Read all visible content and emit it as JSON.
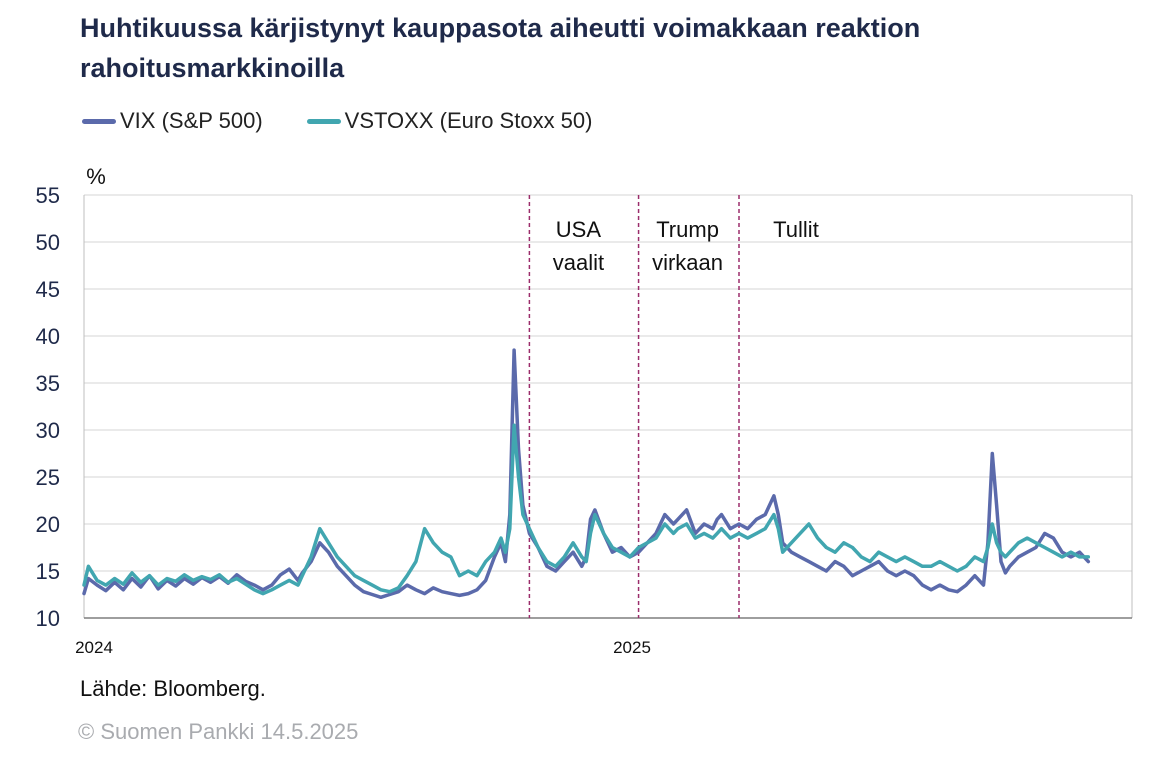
{
  "chart_data": {
    "type": "line",
    "title": "Huhtikuussa kärjistynyt kauppasota aiheutti voimakkaan reaktion rahoitusmarkkinoilla",
    "ylabel": "%",
    "ylim": [
      10,
      55
    ],
    "yticks": [
      10,
      15,
      20,
      25,
      30,
      35,
      40,
      45,
      50,
      55
    ],
    "xlim_month": [
      0,
      24
    ],
    "xticks": [
      {
        "label": "2024",
        "month": 0
      },
      {
        "label": "2025",
        "month": 12
      }
    ],
    "grid": true,
    "legend_position": "top-left",
    "annotations": [
      {
        "month": 10.2,
        "lines": [
          "USA",
          "vaalit"
        ]
      },
      {
        "month": 12.7,
        "lines": [
          "Trump",
          "virkaan"
        ]
      },
      {
        "month": 15.0,
        "lines": [
          "Tullit"
        ]
      }
    ],
    "series": [
      {
        "name": "VIX (S&P 500)",
        "color": "#5b6aab",
        "points": [
          [
            0,
            12.6
          ],
          [
            0.1,
            14.2
          ],
          [
            0.3,
            13.5
          ],
          [
            0.5,
            12.9
          ],
          [
            0.7,
            13.8
          ],
          [
            0.9,
            13.0
          ],
          [
            1.1,
            14.2
          ],
          [
            1.3,
            13.3
          ],
          [
            1.5,
            14.5
          ],
          [
            1.7,
            13.1
          ],
          [
            1.9,
            14.0
          ],
          [
            2.1,
            13.4
          ],
          [
            2.3,
            14.2
          ],
          [
            2.5,
            13.6
          ],
          [
            2.7,
            14.3
          ],
          [
            2.9,
            13.8
          ],
          [
            3.1,
            14.4
          ],
          [
            3.3,
            13.7
          ],
          [
            3.5,
            14.6
          ],
          [
            3.7,
            13.9
          ],
          [
            3.9,
            13.5
          ],
          [
            4.1,
            13.0
          ],
          [
            4.3,
            13.5
          ],
          [
            4.5,
            14.6
          ],
          [
            4.7,
            15.2
          ],
          [
            4.9,
            14.0
          ],
          [
            5.0,
            14.8
          ],
          [
            5.2,
            16.0
          ],
          [
            5.4,
            18.0
          ],
          [
            5.6,
            17.0
          ],
          [
            5.8,
            15.5
          ],
          [
            6.0,
            14.5
          ],
          [
            6.2,
            13.5
          ],
          [
            6.4,
            12.8
          ],
          [
            6.6,
            12.5
          ],
          [
            6.8,
            12.2
          ],
          [
            7.0,
            12.5
          ],
          [
            7.2,
            12.8
          ],
          [
            7.4,
            13.5
          ],
          [
            7.6,
            13.0
          ],
          [
            7.8,
            12.6
          ],
          [
            8.0,
            13.2
          ],
          [
            8.2,
            12.8
          ],
          [
            8.4,
            12.6
          ],
          [
            8.6,
            12.4
          ],
          [
            8.8,
            12.6
          ],
          [
            9.0,
            13.0
          ],
          [
            9.2,
            14.0
          ],
          [
            9.4,
            16.5
          ],
          [
            9.55,
            18.0
          ],
          [
            9.65,
            16.0
          ],
          [
            9.75,
            21.0
          ],
          [
            9.85,
            38.5
          ],
          [
            9.95,
            28.0
          ],
          [
            10.05,
            22.0
          ],
          [
            10.2,
            19.0
          ],
          [
            10.4,
            17.5
          ],
          [
            10.6,
            15.5
          ],
          [
            10.8,
            15.0
          ],
          [
            11.0,
            16.0
          ],
          [
            11.2,
            17.0
          ],
          [
            11.4,
            15.5
          ],
          [
            11.5,
            16.5
          ],
          [
            11.6,
            20.5
          ],
          [
            11.7,
            21.5
          ],
          [
            11.9,
            19.0
          ],
          [
            12.1,
            17.0
          ],
          [
            12.3,
            17.5
          ],
          [
            12.5,
            16.5
          ],
          [
            12.7,
            17.0
          ],
          [
            12.9,
            18.0
          ],
          [
            13.1,
            19.0
          ],
          [
            13.3,
            21.0
          ],
          [
            13.5,
            20.0
          ],
          [
            13.6,
            20.5
          ],
          [
            13.8,
            21.5
          ],
          [
            14.0,
            19.0
          ],
          [
            14.2,
            20.0
          ],
          [
            14.4,
            19.5
          ],
          [
            14.5,
            20.5
          ],
          [
            14.6,
            21.0
          ],
          [
            14.8,
            19.5
          ],
          [
            15.0,
            20.0
          ],
          [
            15.2,
            19.5
          ],
          [
            15.4,
            20.5
          ],
          [
            15.6,
            21.0
          ],
          [
            15.8,
            23.0
          ],
          [
            15.9,
            21.0
          ],
          [
            16.0,
            18.0
          ],
          [
            16.2,
            17.0
          ],
          [
            16.4,
            16.5
          ],
          [
            16.6,
            16.0
          ],
          [
            16.8,
            15.5
          ],
          [
            17.0,
            15.0
          ],
          [
            17.2,
            16.0
          ],
          [
            17.4,
            15.5
          ],
          [
            17.6,
            14.5
          ],
          [
            17.8,
            15.0
          ],
          [
            18.0,
            15.5
          ],
          [
            18.2,
            16.0
          ],
          [
            18.4,
            15.0
          ],
          [
            18.6,
            14.5
          ],
          [
            18.8,
            15.0
          ],
          [
            19.0,
            14.5
          ],
          [
            19.2,
            13.5
          ],
          [
            19.4,
            13.0
          ],
          [
            19.6,
            13.5
          ],
          [
            19.8,
            13.0
          ],
          [
            20.0,
            12.8
          ],
          [
            20.2,
            13.5
          ],
          [
            20.4,
            14.5
          ],
          [
            20.6,
            13.5
          ],
          [
            20.7,
            18.0
          ],
          [
            20.8,
            27.5
          ],
          [
            20.9,
            22.0
          ],
          [
            21.0,
            16.0
          ],
          [
            21.1,
            14.8
          ],
          [
            21.2,
            15.5
          ],
          [
            21.4,
            16.5
          ],
          [
            21.6,
            17.0
          ],
          [
            21.8,
            17.5
          ],
          [
            22.0,
            19.0
          ],
          [
            22.2,
            18.5
          ],
          [
            22.4,
            17.0
          ],
          [
            22.6,
            16.5
          ],
          [
            22.8,
            17.0
          ],
          [
            23.0,
            16.0
          ]
        ]
      },
      {
        "name": "VSTOXX (Euro Stoxx 50)",
        "color": "#41a6b0",
        "points": [
          [
            0,
            13.5
          ],
          [
            0.1,
            15.5
          ],
          [
            0.3,
            14.0
          ],
          [
            0.5,
            13.5
          ],
          [
            0.7,
            14.2
          ],
          [
            0.9,
            13.6
          ],
          [
            1.1,
            14.8
          ],
          [
            1.3,
            13.8
          ],
          [
            1.5,
            14.5
          ],
          [
            1.7,
            13.5
          ],
          [
            1.9,
            14.2
          ],
          [
            2.1,
            13.9
          ],
          [
            2.3,
            14.6
          ],
          [
            2.5,
            14.0
          ],
          [
            2.7,
            14.4
          ],
          [
            2.9,
            14.1
          ],
          [
            3.1,
            14.6
          ],
          [
            3.3,
            13.8
          ],
          [
            3.5,
            14.2
          ],
          [
            3.7,
            13.6
          ],
          [
            3.9,
            13.0
          ],
          [
            4.1,
            12.6
          ],
          [
            4.3,
            13.0
          ],
          [
            4.5,
            13.5
          ],
          [
            4.7,
            14.0
          ],
          [
            4.9,
            13.5
          ],
          [
            5.0,
            14.5
          ],
          [
            5.2,
            16.5
          ],
          [
            5.4,
            19.5
          ],
          [
            5.6,
            18.0
          ],
          [
            5.8,
            16.5
          ],
          [
            6.0,
            15.5
          ],
          [
            6.2,
            14.5
          ],
          [
            6.4,
            14.0
          ],
          [
            6.6,
            13.5
          ],
          [
            6.8,
            13.0
          ],
          [
            7.0,
            12.8
          ],
          [
            7.2,
            13.2
          ],
          [
            7.4,
            14.5
          ],
          [
            7.6,
            16.0
          ],
          [
            7.8,
            19.5
          ],
          [
            8.0,
            18.0
          ],
          [
            8.2,
            17.0
          ],
          [
            8.4,
            16.5
          ],
          [
            8.6,
            14.5
          ],
          [
            8.8,
            15.0
          ],
          [
            9.0,
            14.5
          ],
          [
            9.2,
            16.0
          ],
          [
            9.4,
            17.0
          ],
          [
            9.55,
            18.5
          ],
          [
            9.65,
            17.0
          ],
          [
            9.75,
            19.5
          ],
          [
            9.85,
            30.5
          ],
          [
            9.95,
            25.0
          ],
          [
            10.05,
            21.0
          ],
          [
            10.2,
            19.5
          ],
          [
            10.4,
            17.5
          ],
          [
            10.6,
            16.0
          ],
          [
            10.8,
            15.5
          ],
          [
            11.0,
            16.5
          ],
          [
            11.2,
            18.0
          ],
          [
            11.4,
            16.5
          ],
          [
            11.5,
            16.0
          ],
          [
            11.6,
            19.0
          ],
          [
            11.7,
            21.0
          ],
          [
            11.9,
            19.0
          ],
          [
            12.1,
            17.5
          ],
          [
            12.3,
            17.0
          ],
          [
            12.5,
            16.5
          ],
          [
            12.7,
            17.5
          ],
          [
            12.9,
            18.0
          ],
          [
            13.1,
            18.5
          ],
          [
            13.3,
            20.0
          ],
          [
            13.5,
            19.0
          ],
          [
            13.6,
            19.5
          ],
          [
            13.8,
            20.0
          ],
          [
            14.0,
            18.5
          ],
          [
            14.2,
            19.0
          ],
          [
            14.4,
            18.5
          ],
          [
            14.5,
            19.0
          ],
          [
            14.6,
            19.5
          ],
          [
            14.8,
            18.5
          ],
          [
            15.0,
            19.0
          ],
          [
            15.2,
            18.5
          ],
          [
            15.4,
            19.0
          ],
          [
            15.6,
            19.5
          ],
          [
            15.8,
            21.0
          ],
          [
            15.9,
            19.5
          ],
          [
            16.0,
            17.0
          ],
          [
            16.2,
            18.0
          ],
          [
            16.4,
            19.0
          ],
          [
            16.6,
            20.0
          ],
          [
            16.8,
            18.5
          ],
          [
            17.0,
            17.5
          ],
          [
            17.2,
            17.0
          ],
          [
            17.4,
            18.0
          ],
          [
            17.6,
            17.5
          ],
          [
            17.8,
            16.5
          ],
          [
            18.0,
            16.0
          ],
          [
            18.2,
            17.0
          ],
          [
            18.4,
            16.5
          ],
          [
            18.6,
            16.0
          ],
          [
            18.8,
            16.5
          ],
          [
            19.0,
            16.0
          ],
          [
            19.2,
            15.5
          ],
          [
            19.4,
            15.5
          ],
          [
            19.6,
            16.0
          ],
          [
            19.8,
            15.5
          ],
          [
            20.0,
            15.0
          ],
          [
            20.2,
            15.5
          ],
          [
            20.4,
            16.5
          ],
          [
            20.6,
            16.0
          ],
          [
            20.7,
            17.5
          ],
          [
            20.8,
            20.0
          ],
          [
            20.9,
            18.0
          ],
          [
            21.0,
            17.0
          ],
          [
            21.1,
            16.5
          ],
          [
            21.2,
            17.0
          ],
          [
            21.4,
            18.0
          ],
          [
            21.6,
            18.5
          ],
          [
            21.8,
            18.0
          ],
          [
            22.0,
            17.5
          ],
          [
            22.2,
            17.0
          ],
          [
            22.4,
            16.5
          ],
          [
            22.6,
            17.0
          ],
          [
            22.8,
            16.5
          ],
          [
            23.0,
            16.5
          ]
        ]
      }
    ]
  },
  "source_label": "Lähde: Bloomberg.",
  "copyright_label": "© Suomen Pankki 14.5.2025"
}
